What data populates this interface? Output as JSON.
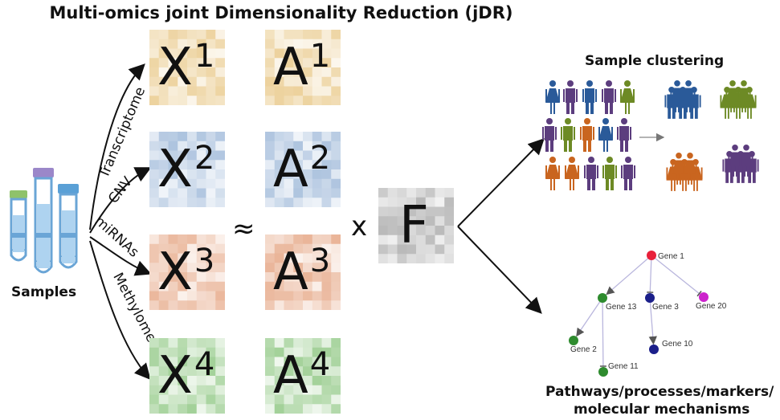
{
  "title": "Multi-omics joint Dimensionality Reduction (jDR)",
  "samples_label": "Samples",
  "omics": [
    {
      "name": "Transcriptome",
      "X": "X",
      "A": "A",
      "index": "1",
      "color": "#e9c98a"
    },
    {
      "name": "CNV",
      "X": "X",
      "A": "A",
      "index": "2",
      "color": "#9fb9d9"
    },
    {
      "name": "miRNAs",
      "X": "X",
      "A": "A",
      "index": "3",
      "color": "#e6a887"
    },
    {
      "name": "Methylome",
      "X": "X",
      "A": "A",
      "index": "4",
      "color": "#93c987"
    }
  ],
  "approx_symbol": "≈",
  "times_symbol": "x",
  "factor_label": "F",
  "factor_color": "#a9a9a9",
  "sample_clustering_label": "Sample clustering",
  "people_colors": {
    "blue": "#2a5a99",
    "purple": "#5c3d7e",
    "green": "#6d8a25",
    "orange": "#c9651f"
  },
  "pathways_label_line1": "Pathways/processes/markers/",
  "pathways_label_line2": "molecular mechanisms",
  "genes": [
    {
      "id": "g1",
      "label": "Gene 1",
      "color": "#e8203a"
    },
    {
      "id": "g13",
      "label": "Gene 13",
      "color": "#2e8b2e"
    },
    {
      "id": "g3",
      "label": "Gene 3",
      "color": "#1b1f8a"
    },
    {
      "id": "g20",
      "label": "Gene 20",
      "color": "#cc22cc"
    },
    {
      "id": "g2",
      "label": "Gene 2",
      "color": "#2e8b2e"
    },
    {
      "id": "g10",
      "label": "Gene 10",
      "color": "#1b1f8a"
    },
    {
      "id": "g11",
      "label": "Gene 11",
      "color": "#2e8b2e"
    }
  ]
}
